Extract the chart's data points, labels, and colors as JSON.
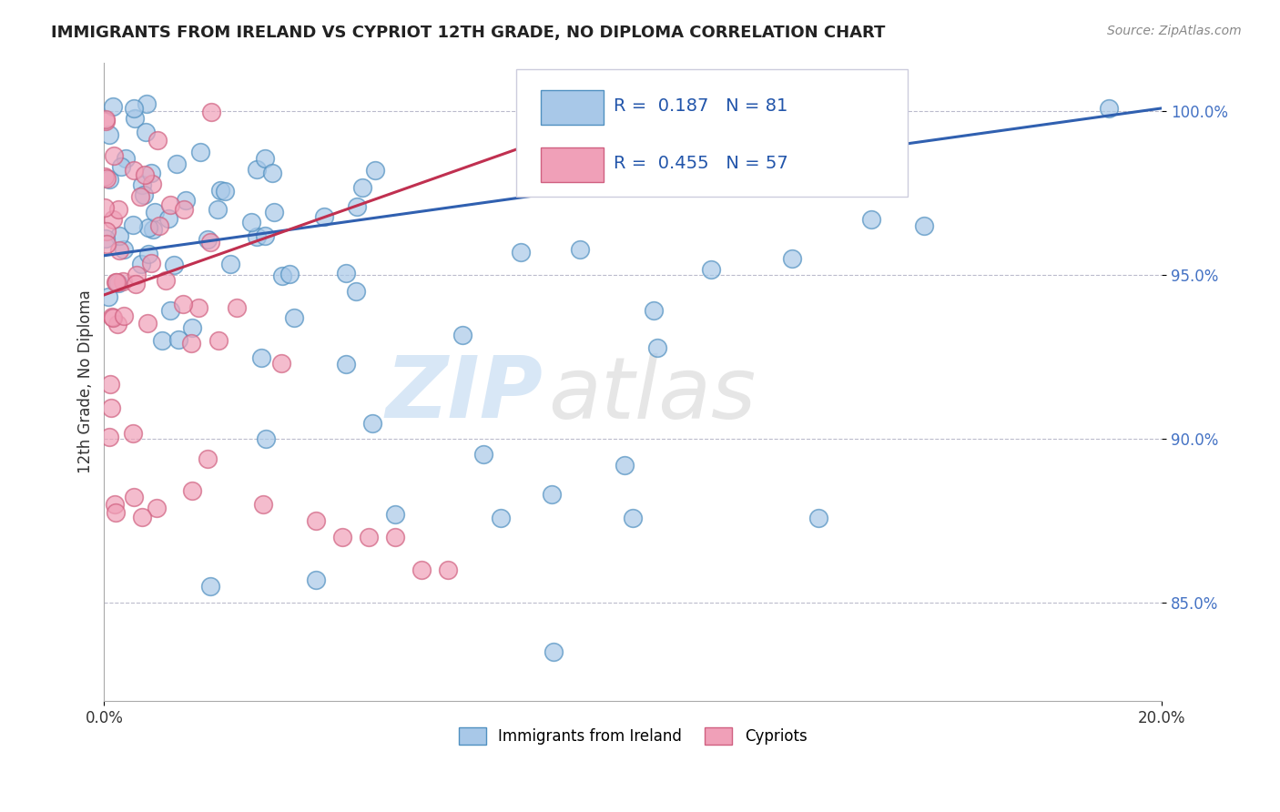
{
  "title": "IMMIGRANTS FROM IRELAND VS CYPRIOT 12TH GRADE, NO DIPLOMA CORRELATION CHART",
  "source": "Source: ZipAtlas.com",
  "ylabel": "12th Grade, No Diploma",
  "legend_label1": "Immigrants from Ireland",
  "legend_label2": "Cypriots",
  "r1": 0.187,
  "n1": 81,
  "r2": 0.455,
  "n2": 57,
  "color_ireland": "#a8c8e8",
  "color_cypriot": "#f0a0b8",
  "line_color_ireland": "#3060b0",
  "line_color_cypriot": "#c03050",
  "watermark_zip": "ZIP",
  "watermark_atlas": "atlas",
  "xlim": [
    0.0,
    0.2
  ],
  "ylim": [
    0.82,
    1.015
  ],
  "yticks": [
    0.85,
    0.9,
    0.95,
    1.0
  ],
  "ytick_labels": [
    "85.0%",
    "90.0%",
    "95.0%",
    "100.0%"
  ],
  "ireland_line_x0": 0.0,
  "ireland_line_y0": 0.956,
  "ireland_line_x1": 0.2,
  "ireland_line_y1": 1.001,
  "cypriot_line_x0": 0.0,
  "cypriot_line_y0": 0.944,
  "cypriot_line_x1": 0.1,
  "cypriot_line_y1": 1.001
}
